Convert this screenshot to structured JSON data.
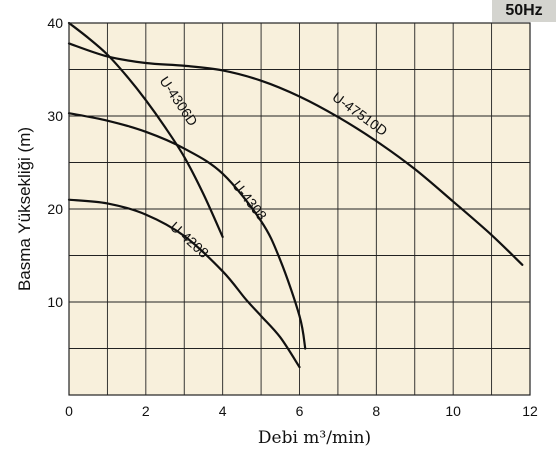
{
  "chart_data": {
    "type": "line",
    "frequency_badge": "50Hz",
    "title": "",
    "xlabel": "Debi m³/min)",
    "ylabel": "Basma Yüksekliği (m)",
    "xlim": [
      0,
      12
    ],
    "ylim": [
      0,
      40
    ],
    "x_ticks": [
      "0",
      "2",
      "4",
      "6",
      "8",
      "10",
      "12"
    ],
    "y_ticks": [
      "10",
      "20",
      "30",
      "40"
    ],
    "grid": true,
    "colors": {
      "plot_background": "#f8f0dc",
      "grid": "#222222",
      "curve": "#111111",
      "badge_background": "#d4d4cf"
    },
    "series": [
      {
        "name": "U-4306D",
        "points": [
          [
            0,
            40
          ],
          [
            0.5,
            38.4
          ],
          [
            1,
            36.6
          ],
          [
            1.5,
            34.3
          ],
          [
            2,
            31.7
          ],
          [
            2.5,
            28.8
          ],
          [
            3,
            25.6
          ],
          [
            3.5,
            21.6
          ],
          [
            4,
            17
          ]
        ],
        "label_x": 2.75,
        "label_y": 31.3,
        "label_angle": 56
      },
      {
        "name": "U-47510D",
        "points": [
          [
            0,
            37.8
          ],
          [
            1,
            36.4
          ],
          [
            2,
            35.7
          ],
          [
            3,
            35.4
          ],
          [
            4,
            34.9
          ],
          [
            5,
            33.8
          ],
          [
            6,
            32.1
          ],
          [
            7,
            29.9
          ],
          [
            8,
            27.3
          ],
          [
            9,
            24.3
          ],
          [
            10,
            20.8
          ],
          [
            11,
            17.2
          ],
          [
            11.8,
            14
          ]
        ],
        "label_x": 7.5,
        "label_y": 29.8,
        "label_angle": 36
      },
      {
        "name": "U-4308",
        "points": [
          [
            0,
            30.3
          ],
          [
            1,
            29.5
          ],
          [
            2,
            28.3
          ],
          [
            3,
            26.5
          ],
          [
            4,
            23.8
          ],
          [
            5,
            18.7
          ],
          [
            5.5,
            14.5
          ],
          [
            6,
            8.5
          ],
          [
            6.15,
            5
          ]
        ],
        "label_x": 4.6,
        "label_y": 20.6,
        "label_angle": 52
      },
      {
        "name": "U-4208",
        "points": [
          [
            0,
            21
          ],
          [
            1,
            20.6
          ],
          [
            2,
            19.4
          ],
          [
            3,
            17.1
          ],
          [
            4,
            13.3
          ],
          [
            4.6,
            10.3
          ],
          [
            5,
            8.5
          ],
          [
            5.5,
            6.2
          ],
          [
            6,
            3
          ]
        ],
        "label_x": 3.05,
        "label_y": 16.3,
        "label_angle": 42
      }
    ]
  }
}
